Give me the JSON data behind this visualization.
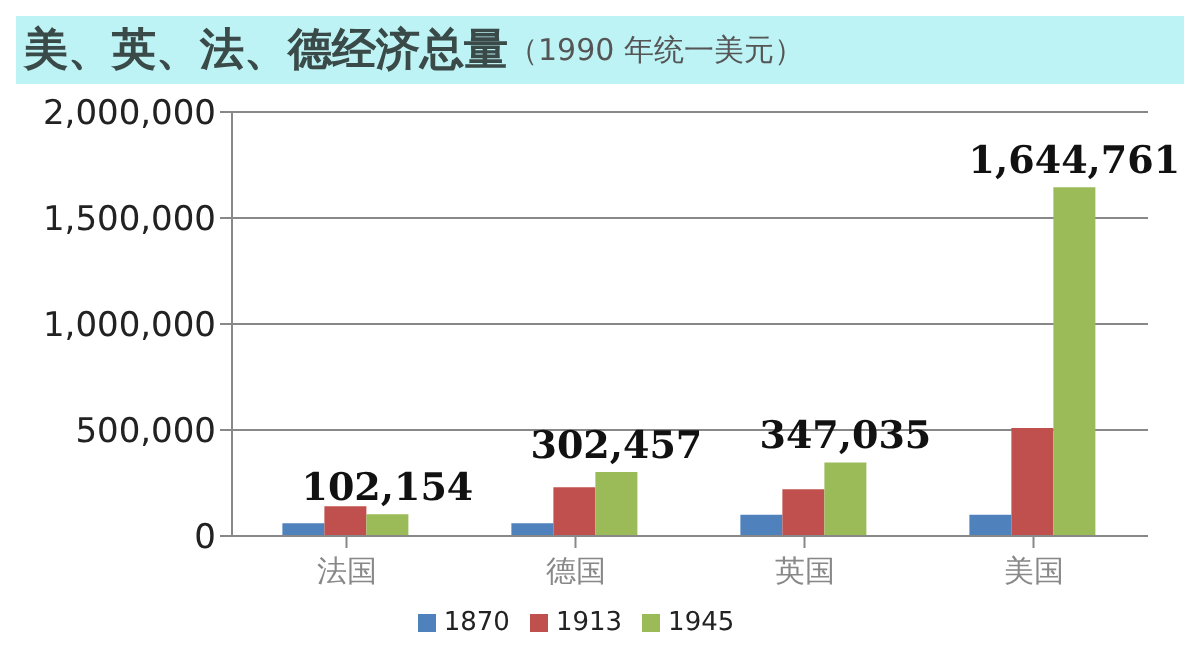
{
  "chart_data": {
    "type": "bar",
    "title": "美、英、法、德经济总量",
    "subtitle": "（1990 年统一美元）",
    "categories": [
      "法国",
      "德国",
      "英国",
      "美国"
    ],
    "series": [
      {
        "name": "1870",
        "color": "#4f81bd",
        "values": [
          60000,
          60000,
          100000,
          100000
        ]
      },
      {
        "name": "1913",
        "color": "#c0504d",
        "values": [
          140000,
          230000,
          220000,
          510000
        ]
      },
      {
        "name": "1945",
        "color": "#9bbb59",
        "values": [
          102154,
          302457,
          347035,
          1644761
        ],
        "value_labels": [
          "102,154",
          "302,457",
          "347,035",
          "1,644,761"
        ]
      }
    ],
    "ylim": [
      0,
      2000000
    ],
    "yticks": [
      0,
      {
        "value": 500000,
        "label": "500,000"
      },
      {
        "value": 1000000,
        "label": "1,000,000"
      },
      {
        "value": 1500000,
        "label": "1,500,000"
      },
      {
        "value": 2000000,
        "label": "2,000,000"
      }
    ],
    "grid": "y",
    "legend": "bottom"
  }
}
